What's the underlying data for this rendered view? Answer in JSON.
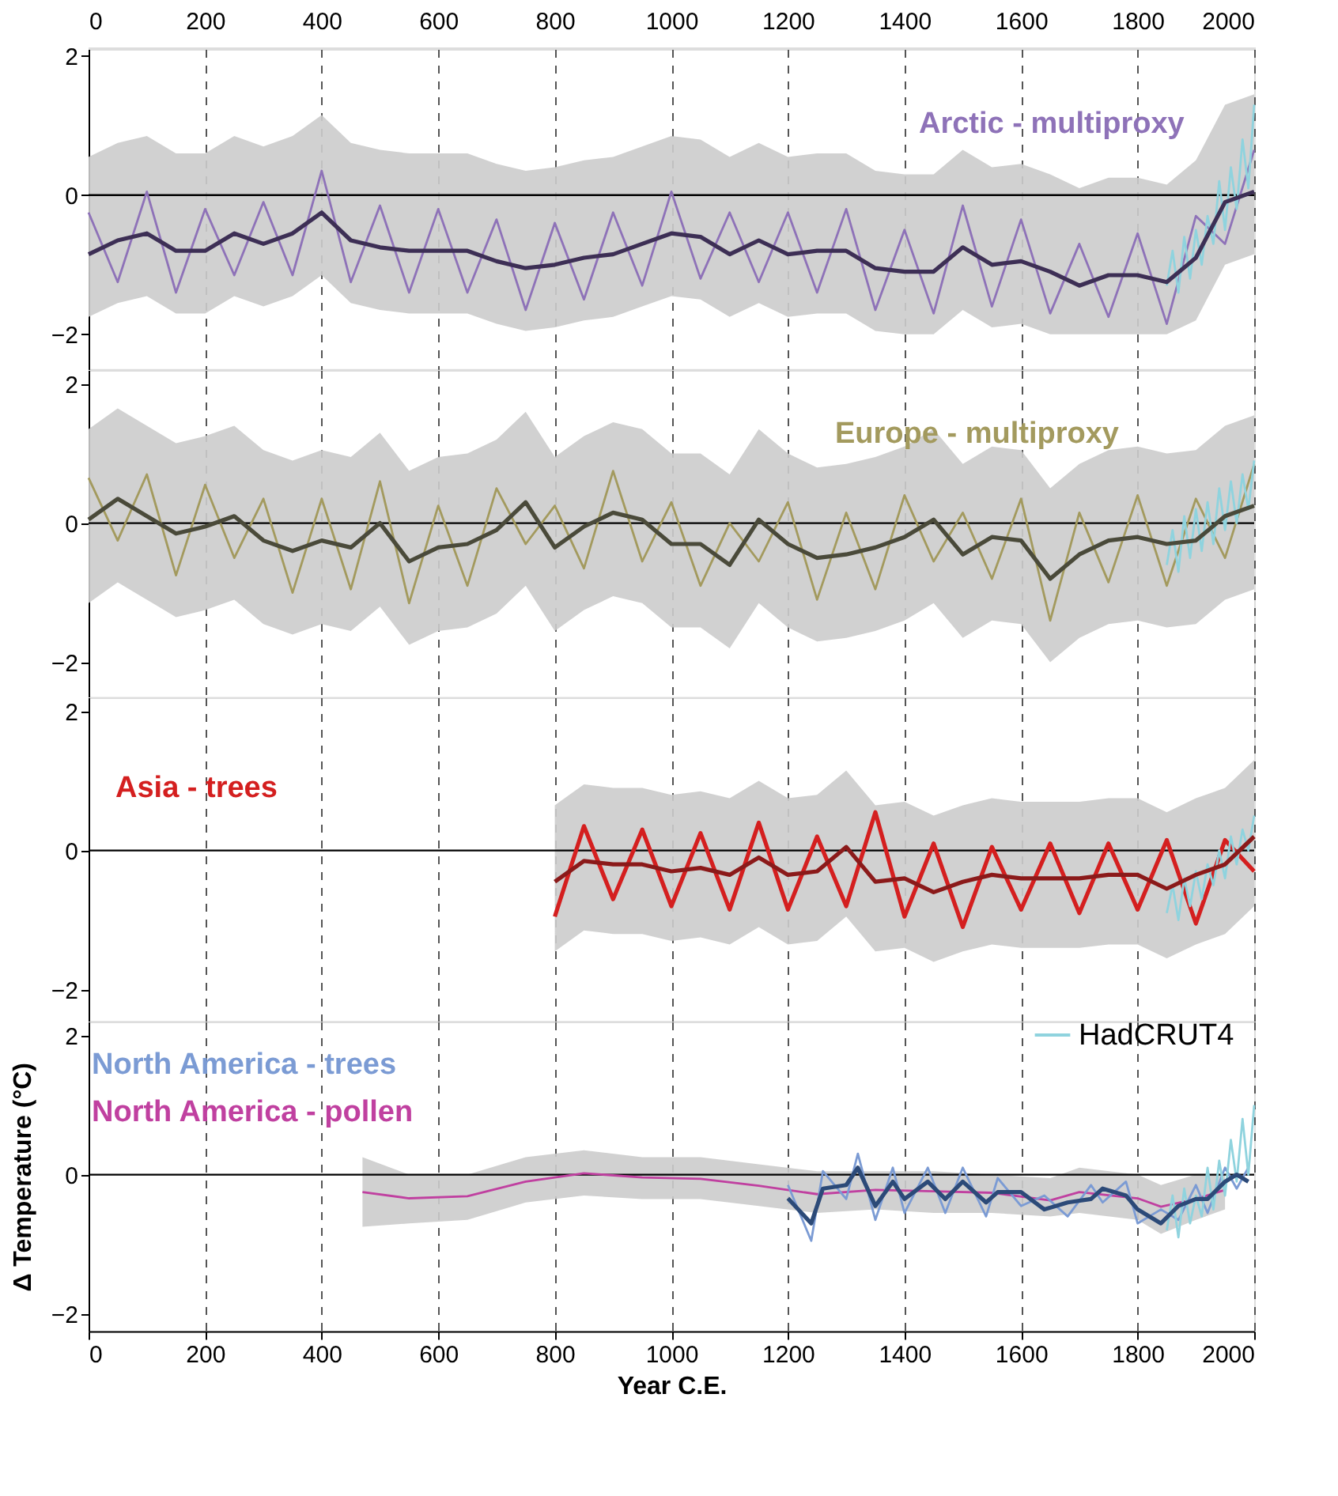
{
  "chart_data": [
    {
      "type": "line",
      "xlim": [
        0,
        2000
      ],
      "xticks": [
        0,
        200,
        400,
        600,
        800,
        1000,
        1200,
        1400,
        1600,
        1800,
        2000
      ],
      "x2lim": [
        0,
        2000
      ],
      "x2ticks": [
        0,
        200,
        400,
        600,
        800,
        1000,
        1200,
        1400,
        1600,
        1800,
        2000
      ],
      "ylim": [
        -2.5,
        2.1
      ],
      "yticks": [
        -2,
        0,
        2
      ],
      "tick_labels": "y",
      "grid": "x",
      "ref_lines": [
        {
          "axis": "y",
          "value": 0,
          "color": "#000000"
        }
      ],
      "x": [
        0,
        50,
        100,
        150,
        200,
        250,
        300,
        350,
        400,
        450,
        500,
        550,
        600,
        650,
        700,
        750,
        800,
        850,
        900,
        950,
        1000,
        1050,
        1100,
        1150,
        1200,
        1250,
        1300,
        1350,
        1400,
        1450,
        1500,
        1550,
        1600,
        1650,
        1700,
        1750,
        1800,
        1850,
        1900,
        1950,
        2000
      ],
      "series": [
        {
          "name": "Arctic - multiproxy",
          "color": "#8e72b8",
          "values": [
            -0.25,
            -1.25,
            0.05,
            -1.4,
            -0.2,
            -1.15,
            -0.1,
            -1.15,
            0.35,
            -1.25,
            -0.15,
            -1.4,
            -0.2,
            -1.4,
            -0.35,
            -1.65,
            -0.4,
            -1.5,
            -0.25,
            -1.3,
            0.05,
            -1.2,
            -0.25,
            -1.25,
            -0.25,
            -1.4,
            -0.2,
            -1.65,
            -0.5,
            -1.7,
            -0.15,
            -1.6,
            -0.35,
            -1.7,
            -0.7,
            -1.75,
            -0.55,
            -1.85,
            -0.3,
            -0.7,
            0.65
          ],
          "upper": [
            0.55,
            0.75,
            0.85,
            0.6,
            0.6,
            0.85,
            0.7,
            0.85,
            1.15,
            0.75,
            0.65,
            0.6,
            0.6,
            0.6,
            0.45,
            0.35,
            0.4,
            0.5,
            0.55,
            0.7,
            0.85,
            0.8,
            0.55,
            0.75,
            0.55,
            0.6,
            0.6,
            0.35,
            0.3,
            0.3,
            0.65,
            0.4,
            0.45,
            0.3,
            0.1,
            0.25,
            0.25,
            0.15,
            0.5,
            1.3,
            1.45
          ],
          "lower": [
            -1.75,
            -1.55,
            -1.45,
            -1.7,
            -1.7,
            -1.45,
            -1.6,
            -1.45,
            -1.15,
            -1.55,
            -1.65,
            -1.7,
            -1.7,
            -1.7,
            -1.85,
            -1.95,
            -1.9,
            -1.8,
            -1.75,
            -1.6,
            -1.45,
            -1.5,
            -1.75,
            -1.55,
            -1.75,
            -1.7,
            -1.7,
            -1.95,
            -2.0,
            -2.0,
            -1.65,
            -1.9,
            -1.85,
            -2.0,
            -2.0,
            -2.0,
            -2.0,
            -2.0,
            -1.8,
            -1.0,
            -0.85
          ]
        },
        {
          "color": "#8fd3de",
          "x": [
            1850,
            1860,
            1870,
            1880,
            1890,
            1900,
            1910,
            1920,
            1930,
            1940,
            1950,
            1960,
            1970,
            1980,
            1990,
            2000
          ],
          "values": [
            -1.3,
            -0.8,
            -1.4,
            -0.6,
            -1.2,
            -0.5,
            -1.0,
            -0.3,
            -0.7,
            0.2,
            -0.5,
            0.4,
            -0.2,
            0.8,
            0.1,
            1.3
          ]
        },
        {
          "color": "#3d2f55",
          "values": [
            -0.85,
            -0.65,
            -0.55,
            -0.8,
            -0.8,
            -0.55,
            -0.7,
            -0.55,
            -0.25,
            -0.65,
            -0.75,
            -0.8,
            -0.8,
            -0.8,
            -0.95,
            -1.05,
            -1.0,
            -0.9,
            -0.85,
            -0.7,
            -0.55,
            -0.6,
            -0.85,
            -0.65,
            -0.85,
            -0.8,
            -0.8,
            -1.05,
            -1.1,
            -1.1,
            -0.75,
            -1.0,
            -0.95,
            -1.1,
            -1.3,
            -1.15,
            -1.15,
            -1.25,
            -0.9,
            -0.1,
            0.05
          ]
        }
      ]
    },
    {
      "type": "line",
      "xlim": [
        0,
        2000
      ],
      "xticks": [
        0,
        200,
        400,
        600,
        800,
        1000,
        1200,
        1400,
        1600,
        1800,
        2000
      ],
      "ylim": [
        -2.5,
        2.2
      ],
      "yticks": [
        -2,
        0,
        2
      ],
      "tick_labels": "y",
      "grid": "x",
      "ref_lines": [
        {
          "axis": "y",
          "value": 0,
          "color": "#000000"
        }
      ],
      "x": [
        0,
        50,
        100,
        150,
        200,
        250,
        300,
        350,
        400,
        450,
        500,
        550,
        600,
        650,
        700,
        750,
        800,
        850,
        900,
        950,
        1000,
        1050,
        1100,
        1150,
        1200,
        1250,
        1300,
        1350,
        1400,
        1450,
        1500,
        1550,
        1600,
        1650,
        1700,
        1750,
        1800,
        1850,
        1900,
        1950,
        2000
      ],
      "series": [
        {
          "name": "Europe - multiproxy",
          "color": "#a39a5e",
          "values": [
            0.65,
            -0.25,
            0.7,
            -0.75,
            0.55,
            -0.5,
            0.35,
            -1.0,
            0.35,
            -0.95,
            0.6,
            -1.15,
            0.25,
            -0.9,
            0.5,
            -0.3,
            0.25,
            -0.65,
            0.75,
            -0.55,
            0.3,
            -0.9,
            0.0,
            -0.55,
            0.3,
            -1.1,
            0.15,
            -0.95,
            0.4,
            -0.55,
            0.15,
            -0.8,
            0.35,
            -1.4,
            0.15,
            -0.85,
            0.4,
            -0.9,
            0.35,
            -0.5,
            0.85
          ],
          "upper": [
            1.35,
            1.65,
            1.4,
            1.15,
            1.25,
            1.4,
            1.05,
            0.9,
            1.05,
            0.95,
            1.3,
            0.75,
            0.95,
            1.0,
            1.2,
            1.6,
            0.95,
            1.25,
            1.45,
            1.35,
            1.0,
            1.0,
            0.7,
            1.35,
            1.0,
            0.8,
            0.85,
            0.95,
            1.1,
            1.35,
            0.85,
            1.1,
            1.05,
            0.5,
            0.85,
            1.05,
            1.1,
            1.0,
            1.05,
            1.4,
            1.55
          ],
          "lower": [
            -1.15,
            -0.85,
            -1.1,
            -1.35,
            -1.25,
            -1.1,
            -1.45,
            -1.6,
            -1.45,
            -1.55,
            -1.2,
            -1.75,
            -1.55,
            -1.5,
            -1.3,
            -0.9,
            -1.55,
            -1.25,
            -1.05,
            -1.15,
            -1.5,
            -1.5,
            -1.8,
            -1.15,
            -1.5,
            -1.7,
            -1.65,
            -1.55,
            -1.4,
            -1.15,
            -1.65,
            -1.4,
            -1.45,
            -2.0,
            -1.65,
            -1.45,
            -1.4,
            -1.5,
            -1.45,
            -1.1,
            -0.95
          ]
        },
        {
          "color": "#8fd3de",
          "x": [
            1850,
            1860,
            1870,
            1880,
            1890,
            1900,
            1910,
            1920,
            1930,
            1940,
            1950,
            1960,
            1970,
            1980,
            1990,
            2000
          ],
          "values": [
            -0.6,
            -0.1,
            -0.7,
            0.1,
            -0.5,
            0.2,
            -0.4,
            0.3,
            -0.3,
            0.5,
            -0.1,
            0.6,
            0.0,
            0.7,
            0.2,
            0.9
          ]
        },
        {
          "color": "#4a4a3a",
          "values": [
            0.05,
            0.35,
            0.1,
            -0.15,
            -0.05,
            0.1,
            -0.25,
            -0.4,
            -0.25,
            -0.35,
            0.0,
            -0.55,
            -0.35,
            -0.3,
            -0.1,
            0.3,
            -0.35,
            -0.05,
            0.15,
            0.05,
            -0.3,
            -0.3,
            -0.6,
            0.05,
            -0.3,
            -0.5,
            -0.45,
            -0.35,
            -0.2,
            0.05,
            -0.45,
            -0.2,
            -0.25,
            -0.8,
            -0.45,
            -0.25,
            -0.2,
            -0.3,
            -0.25,
            0.1,
            0.25
          ]
        }
      ]
    },
    {
      "type": "line",
      "xlim": [
        0,
        2000
      ],
      "xticks": [
        0,
        200,
        400,
        600,
        800,
        1000,
        1200,
        1400,
        1600,
        1800,
        2000
      ],
      "ylim": [
        -2.45,
        2.2
      ],
      "yticks": [
        -2,
        0,
        2
      ],
      "tick_labels": "y",
      "grid": "x",
      "ref_lines": [
        {
          "axis": "y",
          "value": 0,
          "color": "#000000"
        }
      ],
      "x": [
        800,
        850,
        900,
        950,
        1000,
        1050,
        1100,
        1150,
        1200,
        1250,
        1300,
        1350,
        1400,
        1450,
        1500,
        1550,
        1600,
        1650,
        1700,
        1750,
        1800,
        1850,
        1900,
        1950,
        2000
      ],
      "series": [
        {
          "name": "Asia - trees",
          "color": "#d41f1f",
          "values": [
            -0.95,
            0.35,
            -0.7,
            0.3,
            -0.8,
            0.25,
            -0.85,
            0.4,
            -0.85,
            0.2,
            -0.8,
            0.55,
            -0.95,
            0.1,
            -1.1,
            0.05,
            -0.85,
            0.1,
            -0.9,
            0.1,
            -0.85,
            0.15,
            -1.05,
            0.15,
            -0.3
          ],
          "upper": [
            0.65,
            0.95,
            0.9,
            0.9,
            0.8,
            0.85,
            0.75,
            1.0,
            0.75,
            0.8,
            1.15,
            0.65,
            0.7,
            0.5,
            0.65,
            0.75,
            0.7,
            0.7,
            0.7,
            0.75,
            0.75,
            0.55,
            0.75,
            0.9,
            1.3
          ],
          "lower": [
            -1.45,
            -1.15,
            -1.2,
            -1.2,
            -1.3,
            -1.25,
            -1.35,
            -1.1,
            -1.35,
            -1.3,
            -0.95,
            -1.45,
            -1.4,
            -1.6,
            -1.45,
            -1.35,
            -1.4,
            -1.4,
            -1.4,
            -1.35,
            -1.35,
            -1.55,
            -1.35,
            -1.2,
            -0.8
          ]
        },
        {
          "color": "#8fd3de",
          "x": [
            1850,
            1860,
            1870,
            1880,
            1890,
            1900,
            1910,
            1920,
            1930,
            1940,
            1950,
            1960,
            1970,
            1980,
            1990,
            2000
          ],
          "values": [
            -0.9,
            -0.5,
            -1.0,
            -0.4,
            -0.8,
            -0.3,
            -0.7,
            -0.2,
            -0.5,
            0.0,
            -0.4,
            0.2,
            -0.2,
            0.3,
            0.0,
            0.5
          ]
        },
        {
          "color": "#8b1a1a",
          "values": [
            -0.45,
            -0.15,
            -0.2,
            -0.2,
            -0.3,
            -0.25,
            -0.35,
            -0.1,
            -0.35,
            -0.3,
            0.05,
            -0.45,
            -0.4,
            -0.6,
            -0.45,
            -0.35,
            -0.4,
            -0.4,
            -0.4,
            -0.35,
            -0.35,
            -0.55,
            -0.35,
            -0.2,
            0.2
          ]
        }
      ]
    },
    {
      "type": "line",
      "xlim": [
        0,
        2000
      ],
      "xticks": [
        0,
        200,
        400,
        600,
        800,
        1000,
        1200,
        1400,
        1600,
        1800,
        2000
      ],
      "ylim": [
        -2.25,
        2.2
      ],
      "yticks": [
        -2,
        0,
        2
      ],
      "grid": "x",
      "legend": "top right",
      "xlabel": "Year C.E.",
      "ylabel": "Δ Temperature (°C)",
      "ref_lines": [
        {
          "axis": "y",
          "value": 0,
          "color": "#000000"
        }
      ],
      "series": [
        {
          "name": "North America - pollen",
          "color": "#c040a0",
          "x": [
            470,
            550,
            650,
            750,
            850,
            950,
            1050,
            1150,
            1250,
            1350,
            1450,
            1550,
            1650,
            1700,
            1800,
            1840,
            1900,
            1950
          ],
          "values": [
            -0.25,
            -0.34,
            -0.31,
            -0.1,
            0.02,
            -0.04,
            -0.06,
            -0.16,
            -0.28,
            -0.22,
            -0.24,
            -0.26,
            -0.37,
            -0.25,
            -0.34,
            -0.46,
            -0.35,
            -0.22
          ],
          "upper": [
            0.25,
            0.0,
            0.0,
            0.25,
            0.35,
            0.25,
            0.25,
            0.15,
            0.05,
            0.05,
            0.05,
            0.0,
            -0.05,
            0.1,
            0.0,
            -0.15,
            0.0,
            0.0
          ],
          "lower": [
            -0.75,
            -0.7,
            -0.65,
            -0.4,
            -0.3,
            -0.35,
            -0.35,
            -0.45,
            -0.55,
            -0.5,
            -0.55,
            -0.55,
            -0.6,
            -0.55,
            -0.65,
            -0.85,
            -0.65,
            -0.5
          ]
        },
        {
          "name": "North America - trees",
          "color": "#7b9bd4",
          "x": [
            1200,
            1240,
            1260,
            1300,
            1320,
            1350,
            1380,
            1400,
            1440,
            1470,
            1500,
            1540,
            1560,
            1600,
            1640,
            1680,
            1720,
            1740,
            1780,
            1800,
            1840,
            1870,
            1900,
            1920,
            1950,
            1970,
            1990
          ],
          "values": [
            -0.15,
            -0.95,
            0.05,
            -0.35,
            0.3,
            -0.65,
            0.1,
            -0.55,
            0.1,
            -0.55,
            0.1,
            -0.6,
            -0.05,
            -0.45,
            -0.3,
            -0.6,
            -0.15,
            -0.4,
            -0.1,
            -0.7,
            -0.5,
            -0.65,
            -0.15,
            -0.55,
            0.1,
            -0.2,
            0.1
          ]
        },
        {
          "name": "HadCRUT4",
          "color": "#8fd3de",
          "x": [
            1850,
            1860,
            1870,
            1880,
            1890,
            1900,
            1910,
            1920,
            1930,
            1940,
            1950,
            1960,
            1970,
            1980,
            1990,
            2000
          ],
          "values": [
            -0.8,
            -0.3,
            -0.9,
            -0.2,
            -0.7,
            -0.3,
            -0.6,
            0.1,
            -0.5,
            0.2,
            -0.3,
            0.5,
            -0.1,
            0.8,
            0.0,
            1.0
          ]
        },
        {
          "color": "#2c4a78",
          "x": [
            1200,
            1240,
            1260,
            1300,
            1320,
            1350,
            1380,
            1400,
            1440,
            1470,
            1500,
            1540,
            1560,
            1600,
            1640,
            1680,
            1720,
            1740,
            1780,
            1800,
            1840,
            1870,
            1900,
            1920,
            1950,
            1970,
            1990
          ],
          "values": [
            -0.34,
            -0.7,
            -0.2,
            -0.15,
            0.1,
            -0.45,
            -0.1,
            -0.35,
            -0.1,
            -0.35,
            -0.1,
            -0.4,
            -0.25,
            -0.25,
            -0.5,
            -0.4,
            -0.35,
            -0.2,
            -0.3,
            -0.5,
            -0.7,
            -0.45,
            -0.35,
            -0.35,
            -0.1,
            0.0,
            -0.1
          ]
        }
      ]
    }
  ]
}
